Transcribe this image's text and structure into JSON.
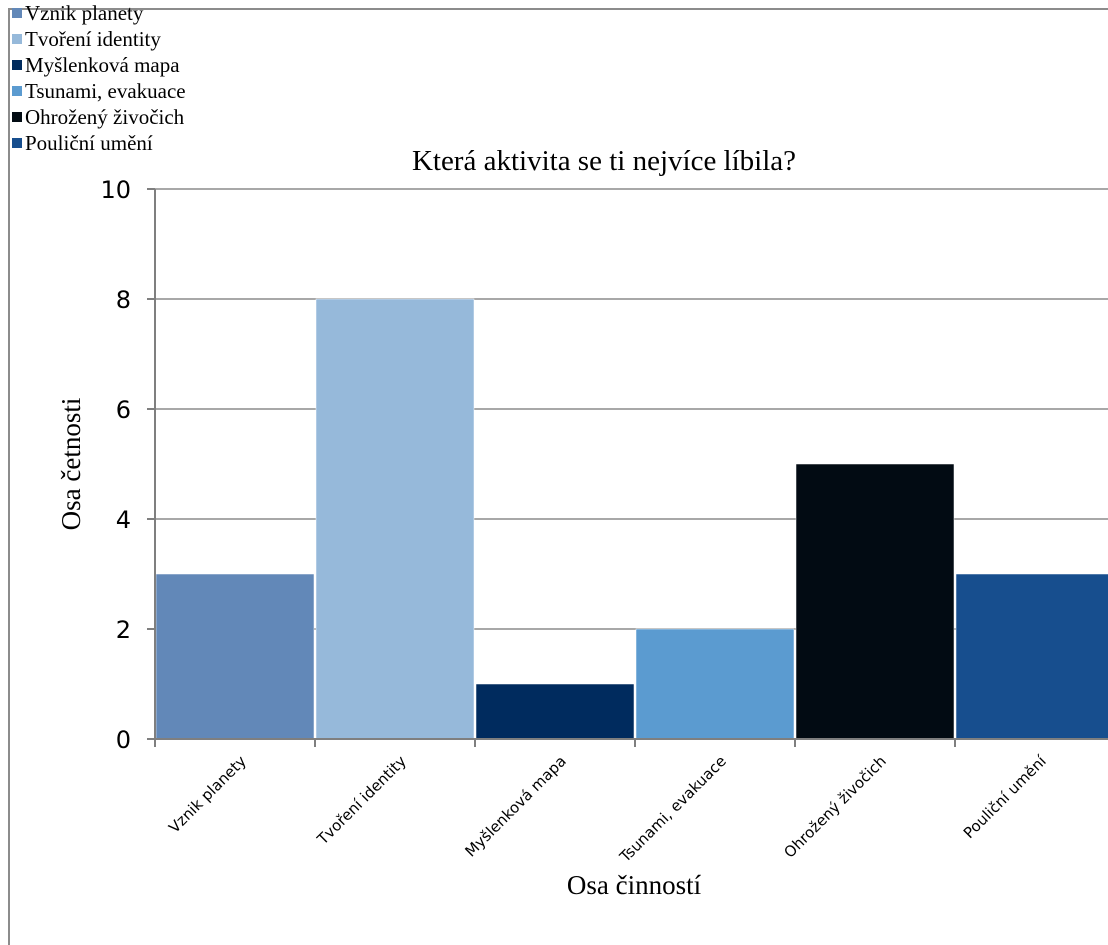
{
  "chart_data": {
    "type": "bar",
    "title": "Která aktivita se ti nejvíce líbila?",
    "xlabel": "Osa činností",
    "ylabel": "Osa četnosti",
    "categories": [
      "Vznik planety",
      "Tvoření identity",
      "Myšlenková mapa",
      "Tsunami, evakuace",
      "Ohrožený živočich",
      "Pouliční umění"
    ],
    "values": [
      3,
      8,
      1,
      2,
      5,
      3
    ],
    "colors": [
      "#6288b8",
      "#96b9da",
      "#002b5e",
      "#5b9bd0",
      "#020b13",
      "#174e8e"
    ],
    "ylim": [
      0,
      10
    ],
    "yticks": [
      "0",
      "2",
      "4",
      "6",
      "8",
      "10"
    ],
    "grid": true,
    "legend_position": "top-left",
    "legend": [
      "Vznik planety",
      "Tvoření identity",
      "Myšlenková mapa",
      "Tsunami, evakuace",
      "Ohrožený živočich",
      "Pouliční umění"
    ]
  }
}
